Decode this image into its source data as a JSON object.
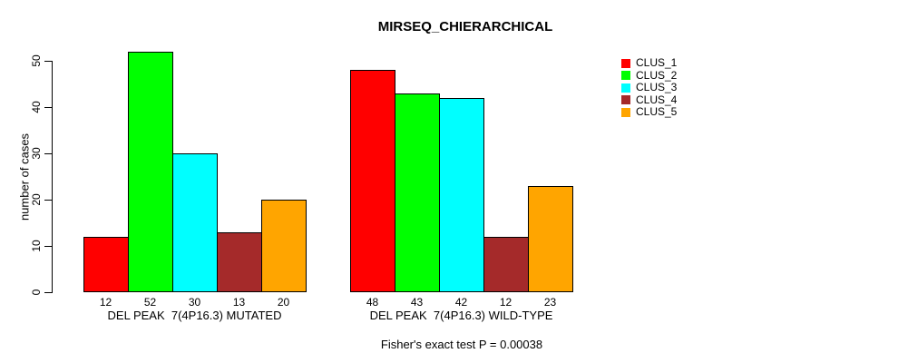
{
  "chart_data": {
    "type": "bar",
    "title": "MIRSEQ_CHIERARCHICAL",
    "ylabel": "number of cases",
    "annotation": "Fisher's exact test P = 0.00038",
    "categories": [
      "DEL PEAK  7(4P16.3) MUTATED",
      "DEL PEAK  7(4P16.3) WILD-TYPE"
    ],
    "series": [
      {
        "name": "CLUS_1",
        "color": "#FF0000",
        "values": [
          12,
          48
        ]
      },
      {
        "name": "CLUS_2",
        "color": "#00FF00",
        "values": [
          52,
          43
        ]
      },
      {
        "name": "CLUS_3",
        "color": "#00FFFF",
        "values": [
          30,
          42
        ]
      },
      {
        "name": "CLUS_4",
        "color": "#A52A2A",
        "values": [
          13,
          12
        ]
      },
      {
        "name": "CLUS_5",
        "color": "#FFA500",
        "values": [
          20,
          23
        ]
      }
    ],
    "yticks": [
      0,
      10,
      20,
      30,
      40,
      50
    ],
    "ylim": [
      0,
      52
    ],
    "grid": false,
    "legend_position": "right",
    "bar_value_labels": true,
    "bar_border_color": "#000000",
    "axis_color": "#000000",
    "background_color": "#FFFFFF"
  }
}
